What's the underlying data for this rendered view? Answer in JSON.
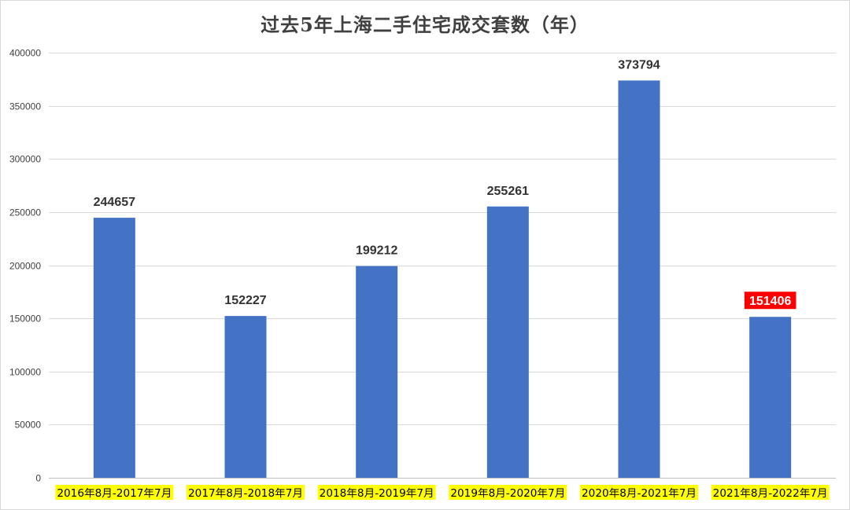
{
  "chart_data": {
    "type": "bar",
    "title": "过去5年上海二手住宅成交套数（年）",
    "xlabel": "",
    "ylabel": "",
    "categories": [
      "2016年8月-2017年7月",
      "2017年8月-2018年7月",
      "2018年8月-2019年7月",
      "2019年8月-2020年7月",
      "2020年8月-2021年7月",
      "2021年8月-2022年7月"
    ],
    "values": [
      244657,
      152227,
      199212,
      255261,
      373794,
      151406
    ],
    "ylim": [
      0,
      400000
    ],
    "yticks": [
      "0",
      "50000",
      "100000",
      "150000",
      "200000",
      "250000",
      "300000",
      "350000",
      "400000"
    ],
    "grid": true,
    "legend": "none",
    "highlighted_index": 5
  },
  "colors": {
    "bar": "#4472c4",
    "grid": "#d9d9d9",
    "axis": "#bfbfbf",
    "category_highlight": "#ffff00",
    "label_highlight_bg": "#ff0000",
    "label_highlight_text": "#ffffff"
  }
}
